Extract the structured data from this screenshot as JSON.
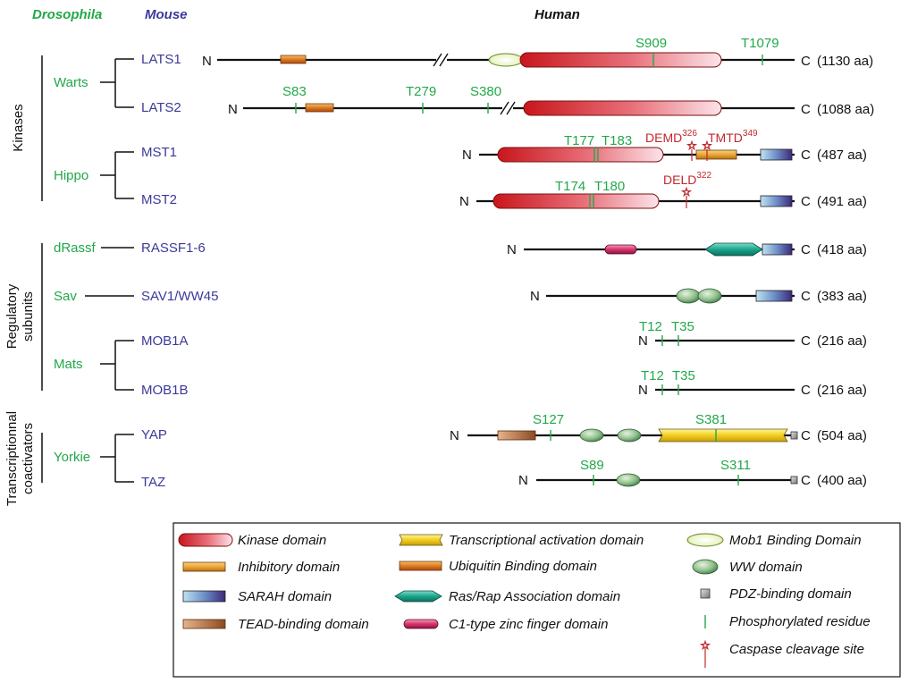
{
  "headers": {
    "drosophila": "Drosophila",
    "mouse": "Mouse",
    "human": "Human"
  },
  "groups": {
    "kinases": "Kinases",
    "regulatory_line1": "Regulatory",
    "regulatory_line2": "subunits",
    "coactivators_line1": "Transcriptionnal",
    "coactivators_line2": "coactivators"
  },
  "drosophila": {
    "warts": "Warts",
    "hippo": "Hippo",
    "drassf": "dRassf",
    "sav": "Sav",
    "mats": "Mats",
    "yorkie": "Yorkie"
  },
  "proteins": [
    {
      "name": "LATS1",
      "length": "(1130 aa)"
    },
    {
      "name": "LATS2",
      "length": "(1088 aa)"
    },
    {
      "name": "MST1",
      "length": "(487 aa)"
    },
    {
      "name": "MST2",
      "length": "(491 aa)"
    },
    {
      "name": "RASSF1-6",
      "length": "(418 aa)"
    },
    {
      "name": "SAV1/WW45",
      "length": "(383 aa)"
    },
    {
      "name": "MOB1A",
      "length": "(216 aa)"
    },
    {
      "name": "MOB1B",
      "length": "(216 aa)"
    },
    {
      "name": "YAP",
      "length": "(504 aa)"
    },
    {
      "name": "TAZ",
      "length": "(400 aa)"
    }
  ],
  "termini": {
    "n": "N",
    "c": "C"
  },
  "sites": {
    "lats1": [
      "S909",
      "T1079"
    ],
    "lats2": [
      "S83",
      "T279",
      "S380"
    ],
    "mst1": [
      "T177",
      "T183"
    ],
    "mst2": [
      "T174",
      "T180"
    ],
    "mob1a": [
      "T12",
      "T35"
    ],
    "mob1b": [
      "T12",
      "T35"
    ],
    "yap": [
      "S127",
      "S381"
    ],
    "taz": [
      "S89",
      "S311"
    ]
  },
  "caspase": {
    "mst1_a": {
      "label": "DEMD",
      "sup": "326"
    },
    "mst1_b": {
      "label": "TMTD",
      "sup": "349"
    },
    "mst2": {
      "label": "DELD",
      "sup": "322"
    }
  },
  "legend": {
    "kinase": "Kinase domain",
    "inhibitory": "Inhibitory domain",
    "sarah": "SARAH domain",
    "tead": "TEAD-binding domain",
    "transcriptional": "Transcriptional activation domain",
    "ubiquitin": "Ubiquitin Binding domain",
    "rasrap": "Ras/Rap Association domain",
    "c1": "C1-type zinc finger domain",
    "mob1": "Mob1 Binding Domain",
    "ww": "WW domain",
    "pdz": "PDZ-binding domain",
    "phospho": "Phosphorylated residue",
    "caspase": "Caspase cleavage site"
  },
  "colors": {
    "drosophila": "#22a84a",
    "mouse": "#3b3a9a",
    "site": "#22a84a",
    "caspase": "#c0282c"
  }
}
